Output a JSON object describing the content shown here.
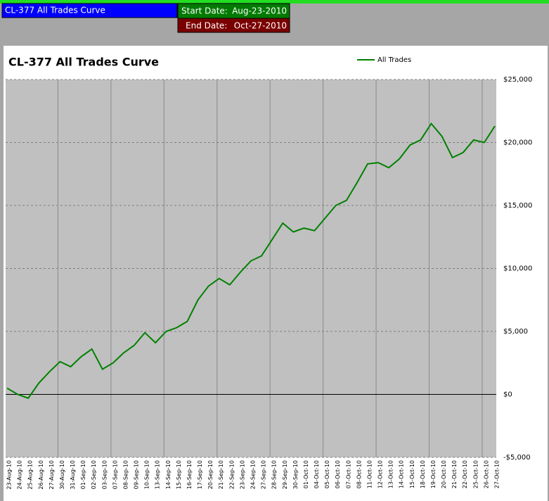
{
  "header": {
    "title": "CL-377 All Trades Curve",
    "start_label": "Start Date:",
    "start_date": "Aug-23-2010",
    "end_label": "End Date:",
    "end_date": "Oct-27-2010"
  },
  "chart_data": {
    "type": "line",
    "title": "CL-377 All Trades Curve",
    "legend": "top-right",
    "grid": true,
    "x": [
      "23-Aug-10",
      "24-Aug-10",
      "25-Aug-10",
      "26-Aug-10",
      "27-Aug-10",
      "30-Aug-10",
      "31-Aug-10",
      "01-Sep-10",
      "02-Sep-10",
      "03-Sep-10",
      "07-Sep-10",
      "08-Sep-10",
      "09-Sep-10",
      "10-Sep-10",
      "13-Sep-10",
      "14-Sep-10",
      "15-Sep-10",
      "16-Sep-10",
      "17-Sep-10",
      "20-Sep-10",
      "21-Sep-10",
      "22-Sep-10",
      "23-Sep-10",
      "24-Sep-10",
      "27-Sep-10",
      "28-Sep-10",
      "29-Sep-10",
      "30-Sep-10",
      "01-Oct-10",
      "04-Oct-10",
      "05-Oct-10",
      "06-Oct-10",
      "07-Oct-10",
      "08-Oct-10",
      "11-Oct-10",
      "12-Oct-10",
      "13-Oct-10",
      "14-Oct-10",
      "15-Oct-10",
      "18-Oct-10",
      "19-Oct-10",
      "20-Oct-10",
      "21-Oct-10",
      "22-Oct-10",
      "25-Oct-10",
      "26-Oct-10",
      "27-Oct-10"
    ],
    "series": [
      {
        "name": "All Trades",
        "color": "#008000",
        "values": [
          500,
          0,
          -300,
          900,
          1800,
          2600,
          2200,
          3000,
          3600,
          2000,
          2500,
          3300,
          3900,
          4900,
          4100,
          5000,
          5300,
          5800,
          7500,
          8600,
          9200,
          8700,
          9700,
          10600,
          11000,
          12300,
          13600,
          12900,
          13200,
          13000,
          14000,
          15000,
          15400,
          16800,
          18300,
          18400,
          18000,
          18700,
          19800,
          20200,
          21500,
          20500,
          18800,
          19200,
          20200,
          20000,
          21300
        ]
      }
    ],
    "ylim": [
      -5000,
      25000
    ],
    "yticks": [
      {
        "value": -5000,
        "label": "-$5,000"
      },
      {
        "value": 0,
        "label": "$0"
      },
      {
        "value": 5000,
        "label": "$5,000"
      },
      {
        "value": 10000,
        "label": "$10,000"
      },
      {
        "value": 15000,
        "label": "$15,000"
      },
      {
        "value": 20000,
        "label": "$20,000"
      },
      {
        "value": 25000,
        "label": "$25,000"
      }
    ]
  }
}
